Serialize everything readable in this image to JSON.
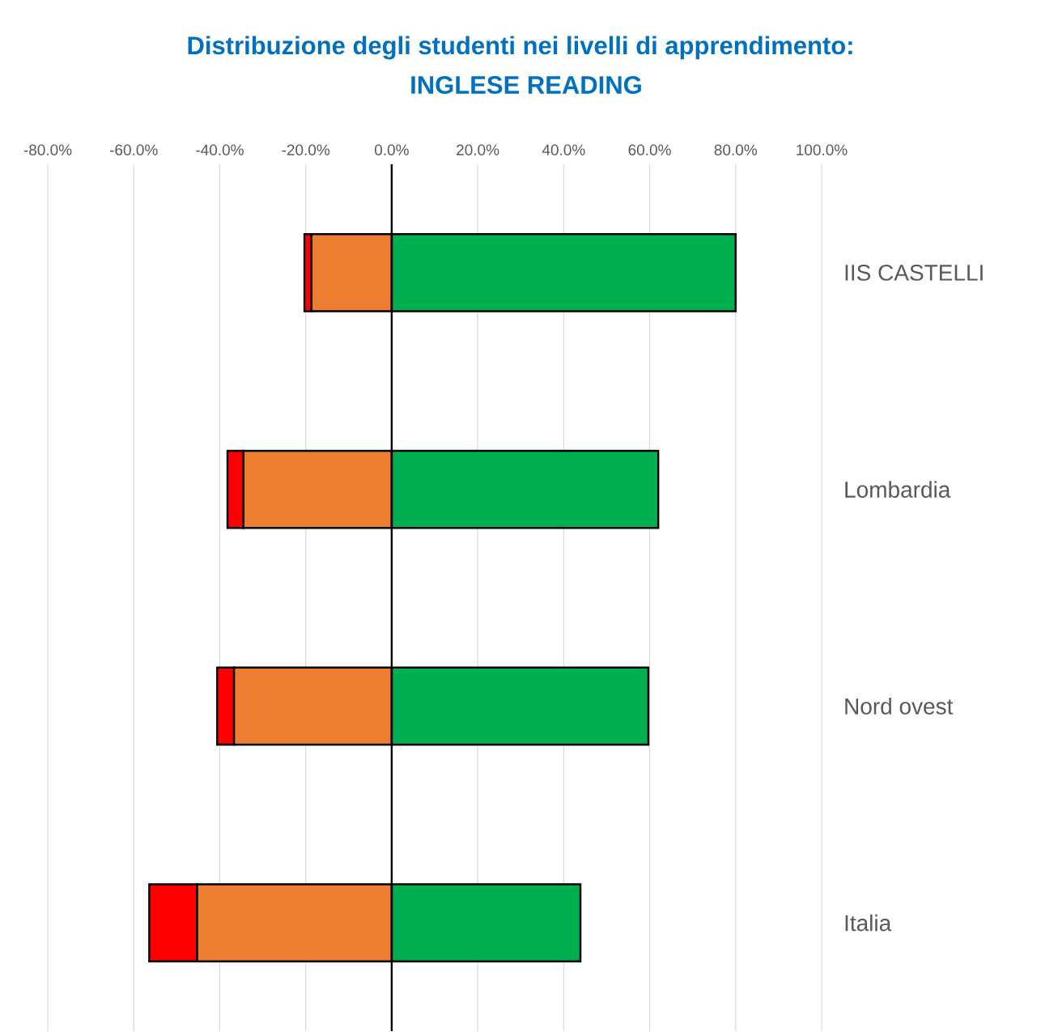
{
  "chart_data": {
    "type": "bar",
    "orientation": "horizontal",
    "stacked": true,
    "title": "Distribuzione degli studenti nei livelli di apprendimento:",
    "subtitle": "INGLESE READING",
    "categories": [
      "IIS CASTELLI",
      "Lombardia",
      "Nord ovest",
      "Italia"
    ],
    "series": [
      {
        "color": "#00b050",
        "values": [
          80.0,
          62.0,
          59.7,
          43.9
        ]
      },
      {
        "color": "#ed7d31",
        "values": [
          -18.7,
          -34.5,
          -36.7,
          -45.3
        ]
      },
      {
        "color": "#ff0000",
        "values": [
          -1.6,
          -3.7,
          -3.9,
          -11.1
        ]
      }
    ],
    "xlim": [
      -80,
      100
    ],
    "xticks": [
      {
        "value": -80,
        "label": "-80.0%"
      },
      {
        "value": -60,
        "label": "-60.0%"
      },
      {
        "value": -40,
        "label": "-40.0%"
      },
      {
        "value": -20,
        "label": "-20.0%"
      },
      {
        "value": 0,
        "label": "0.0%"
      },
      {
        "value": 20,
        "label": "20.0%"
      },
      {
        "value": 40,
        "label": "40.0%"
      },
      {
        "value": 60,
        "label": "60.0%"
      },
      {
        "value": 80,
        "label": "80.0%"
      },
      {
        "value": 100,
        "label": "100.0%"
      }
    ],
    "grid": "x"
  }
}
